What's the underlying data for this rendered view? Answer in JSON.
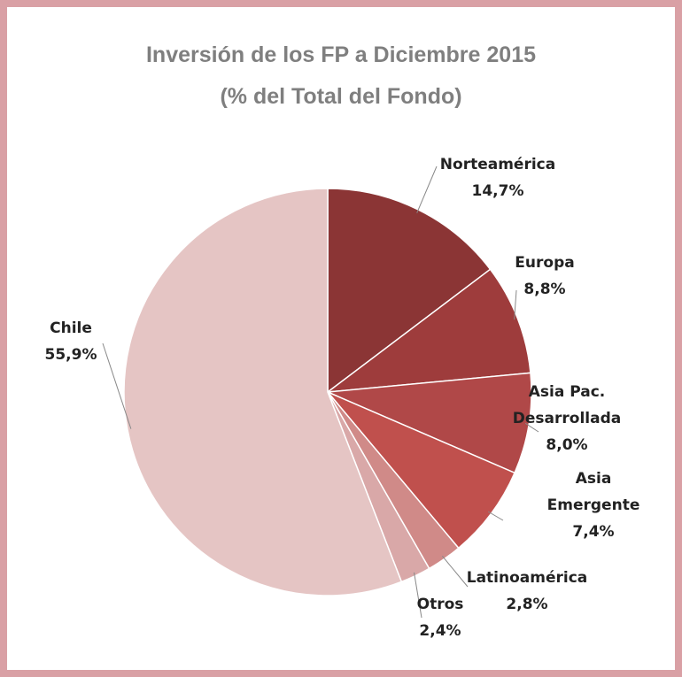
{
  "chart_data": {
    "type": "pie",
    "title": "Inversión de los FP a Diciembre 2015",
    "subtitle": "(% del Total del Fondo)",
    "categories": [
      "Norteamérica",
      "Europa",
      "Asia Pac. Desarrollada",
      "Asia Emergente",
      "Latinoamérica",
      "Otros",
      "Chile"
    ],
    "values": [
      14.7,
      8.8,
      8.0,
      7.4,
      2.8,
      2.4,
      55.9
    ],
    "value_labels": [
      "14,7%",
      "8,8%",
      "8,0%",
      "7,4%",
      "2,8%",
      "2,4%",
      "55,9%"
    ],
    "colors": [
      "#8b3535",
      "#9e3c3c",
      "#b04848",
      "#c0504d",
      "#d08a88",
      "#d9a8a8",
      "#e5c5c4"
    ]
  }
}
